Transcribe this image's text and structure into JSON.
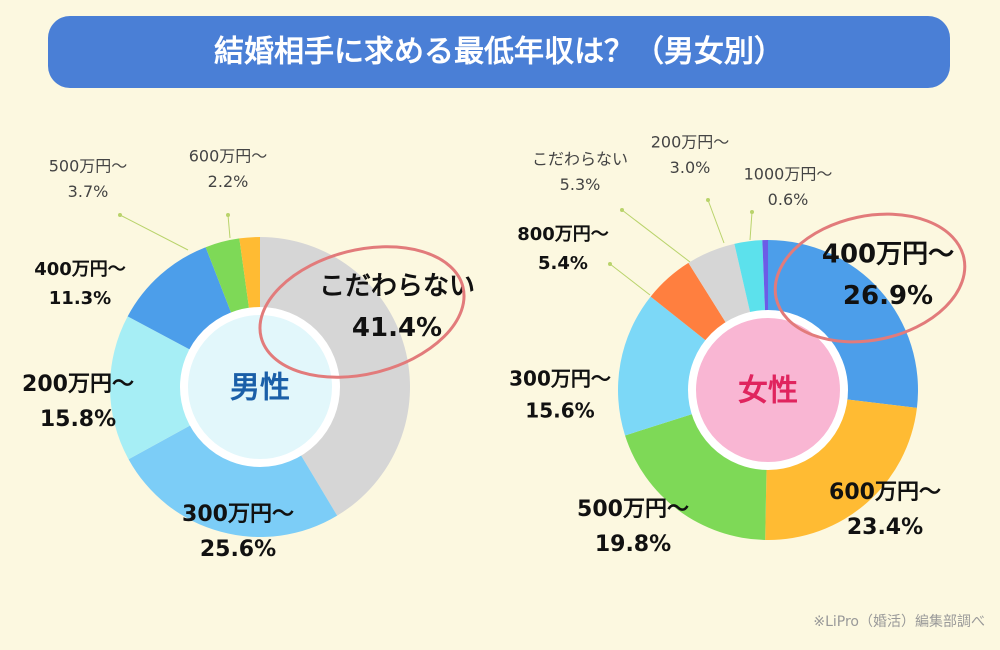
{
  "title": "結婚相手に求める最低年収は？（男女別）",
  "source": "※LiPro（婚活）編集部調べ",
  "chart_data": [
    {
      "type": "pie",
      "center_label": "男性",
      "categories": [
        "こだわらない",
        "300万円～",
        "200万円～",
        "400万円～",
        "500万円～",
        "600万円～"
      ],
      "values": [
        41.4,
        25.6,
        15.8,
        11.3,
        3.7,
        2.2
      ],
      "value_labels": [
        "41.4%",
        "25.6%",
        "15.8%",
        "11.3%",
        "3.7%",
        "2.2%"
      ],
      "colors": [
        "#d6d6d6",
        "#7ccdf7",
        "#a6eef5",
        "#4c9eea",
        "#7ed957",
        "#ffbb33"
      ]
    },
    {
      "type": "pie",
      "center_label": "女性",
      "categories": [
        "400万円～",
        "600万円～",
        "500万円～",
        "300万円～",
        "800万円～",
        "こだわらない",
        "200万円～",
        "1000万円～"
      ],
      "values": [
        26.9,
        23.4,
        19.8,
        15.6,
        5.4,
        5.3,
        3.0,
        0.6
      ],
      "value_labels": [
        "26.9%",
        "23.4%",
        "19.8%",
        "15.6%",
        "5.4%",
        "5.3%",
        "3.0%",
        "0.6%"
      ],
      "colors": [
        "#4c9eea",
        "#ffbb33",
        "#7ed957",
        "#7cd8f7",
        "#ff7f3f",
        "#d6d6d6",
        "#5ce1ec",
        "#6c5ce7"
      ]
    }
  ]
}
